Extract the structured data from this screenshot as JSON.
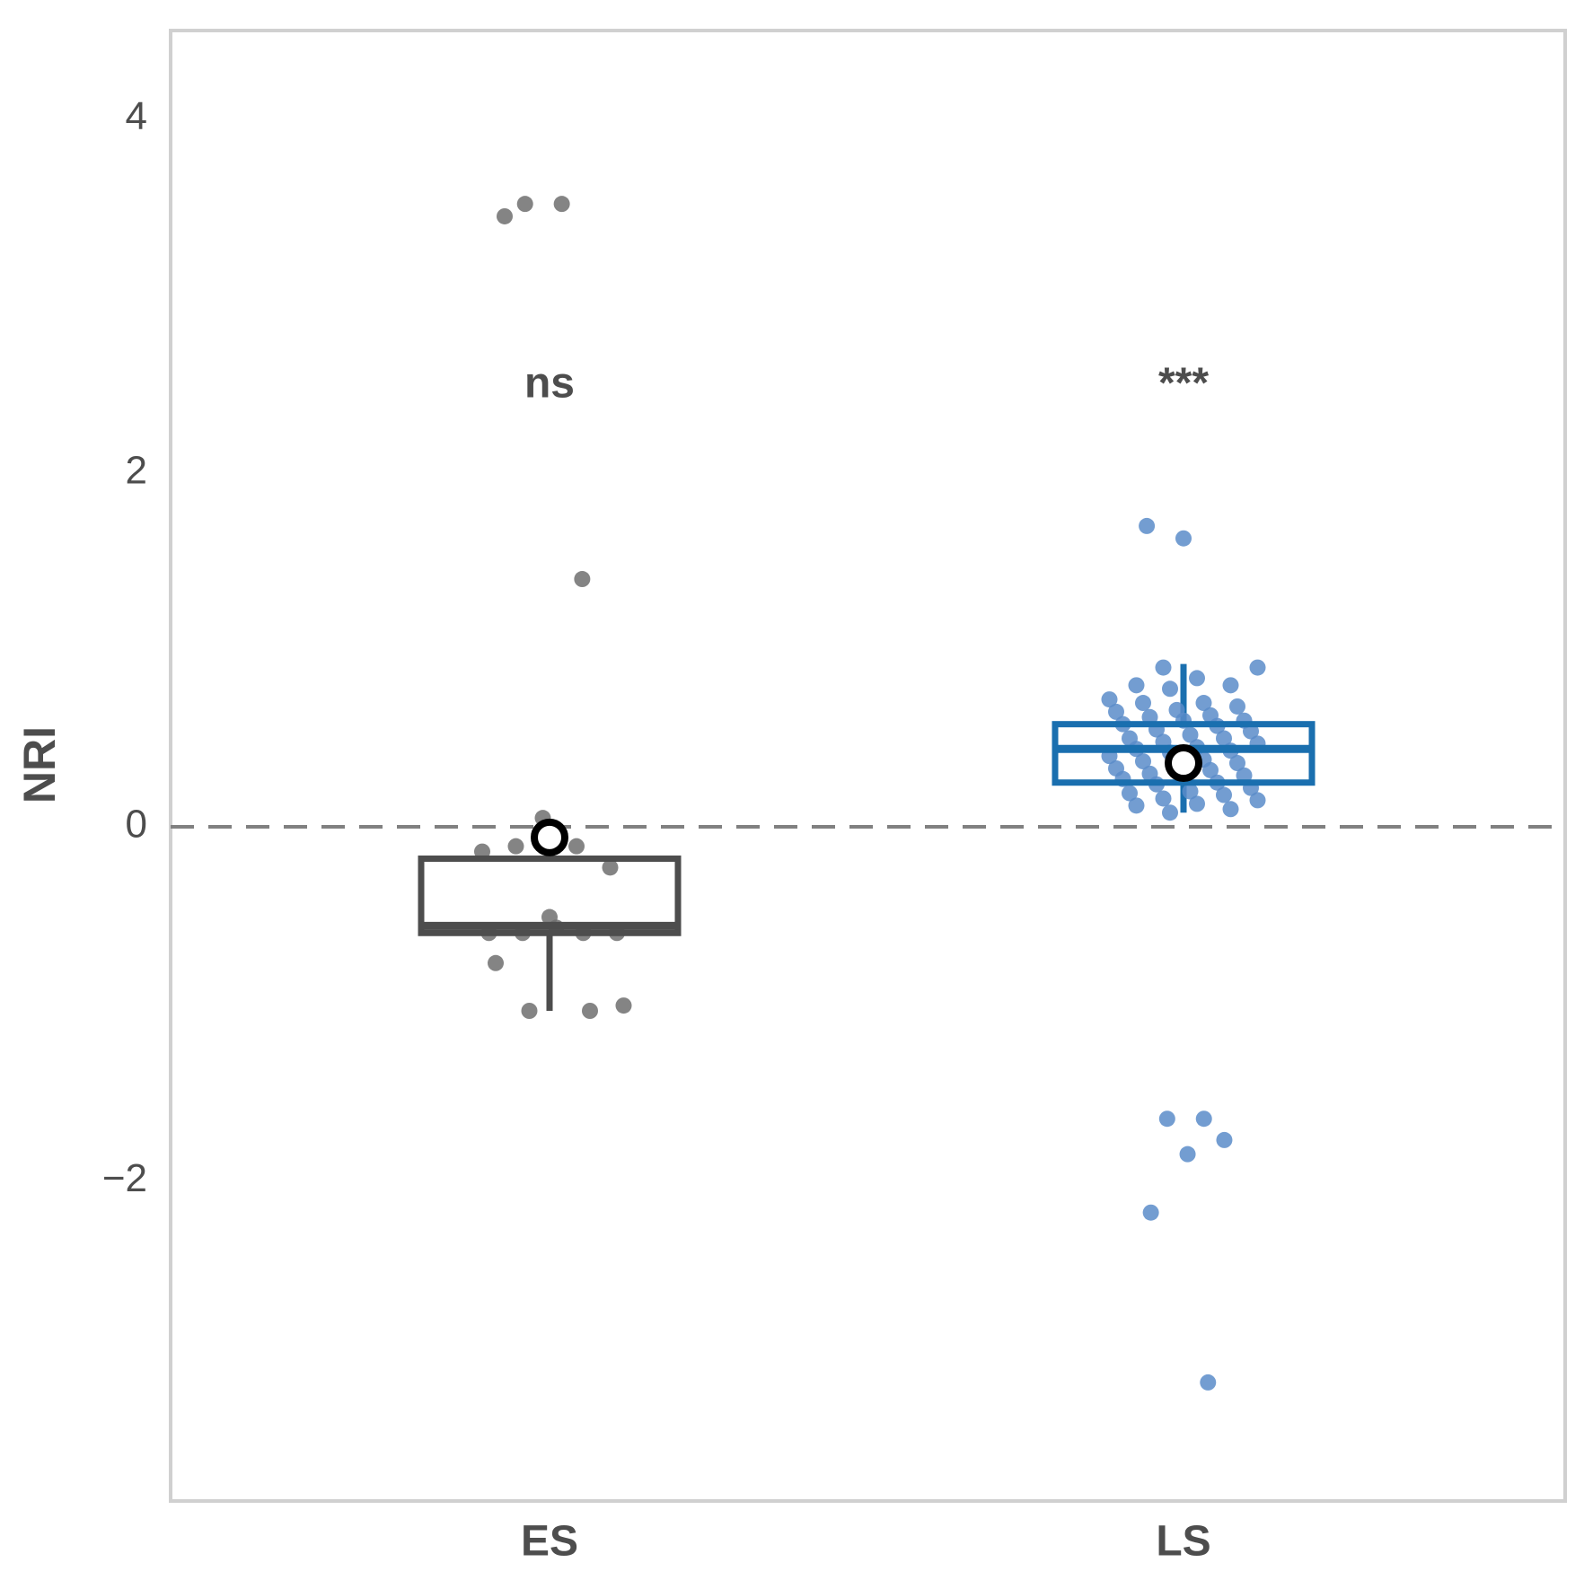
{
  "chart_data": {
    "type": "box",
    "y_label": "NRI",
    "categories": [
      "ES",
      "LS"
    ],
    "ylim": [
      -3.81,
      4.5
    ],
    "yticks": [
      {
        "value": -2,
        "label": "−2"
      },
      0,
      2,
      4
    ],
    "reference_line": 0,
    "boxes": [
      {
        "color": "#4d4d4d",
        "point_color": "#6e6e6e",
        "annotation": "ns",
        "whisker_low": -1.04,
        "q1": -0.6,
        "median": -0.56,
        "q3": -0.18,
        "whisker_high": -0.18,
        "mean": -0.06,
        "points": [
          3.45,
          3.52,
          3.52,
          1.4,
          0.05,
          -0.14,
          -0.11,
          -0.11,
          -0.23,
          -0.51,
          -0.6,
          -0.6,
          -0.6,
          -0.6,
          -0.57,
          -0.77,
          -1.04,
          -1.04,
          -1.01
        ]
      },
      {
        "color": "#1a6faf",
        "point_color": "#5b8cc9",
        "annotation": "***",
        "whisker_low": 0.08,
        "q1": 0.25,
        "median": 0.44,
        "q3": 0.58,
        "whisker_high": 0.92,
        "mean": 0.36,
        "points": [
          1.63,
          1.7,
          -1.65,
          -1.65,
          -1.77,
          -1.85,
          -2.18,
          -3.14,
          0.9,
          0.9,
          0.84,
          0.8,
          0.8,
          0.78,
          0.72,
          0.7,
          0.7,
          0.68,
          0.66,
          0.65,
          0.63,
          0.62,
          0.6,
          0.6,
          0.58,
          0.57,
          0.55,
          0.54,
          0.52,
          0.5,
          0.5,
          0.48,
          0.47,
          0.45,
          0.44,
          0.43,
          0.42,
          0.4,
          0.38,
          0.37,
          0.36,
          0.35,
          0.33,
          0.32,
          0.3,
          0.29,
          0.28,
          0.27,
          0.25,
          0.24,
          0.22,
          0.2,
          0.19,
          0.18,
          0.16,
          0.15,
          0.13,
          0.12,
          0.1,
          0.08
        ]
      }
    ]
  }
}
